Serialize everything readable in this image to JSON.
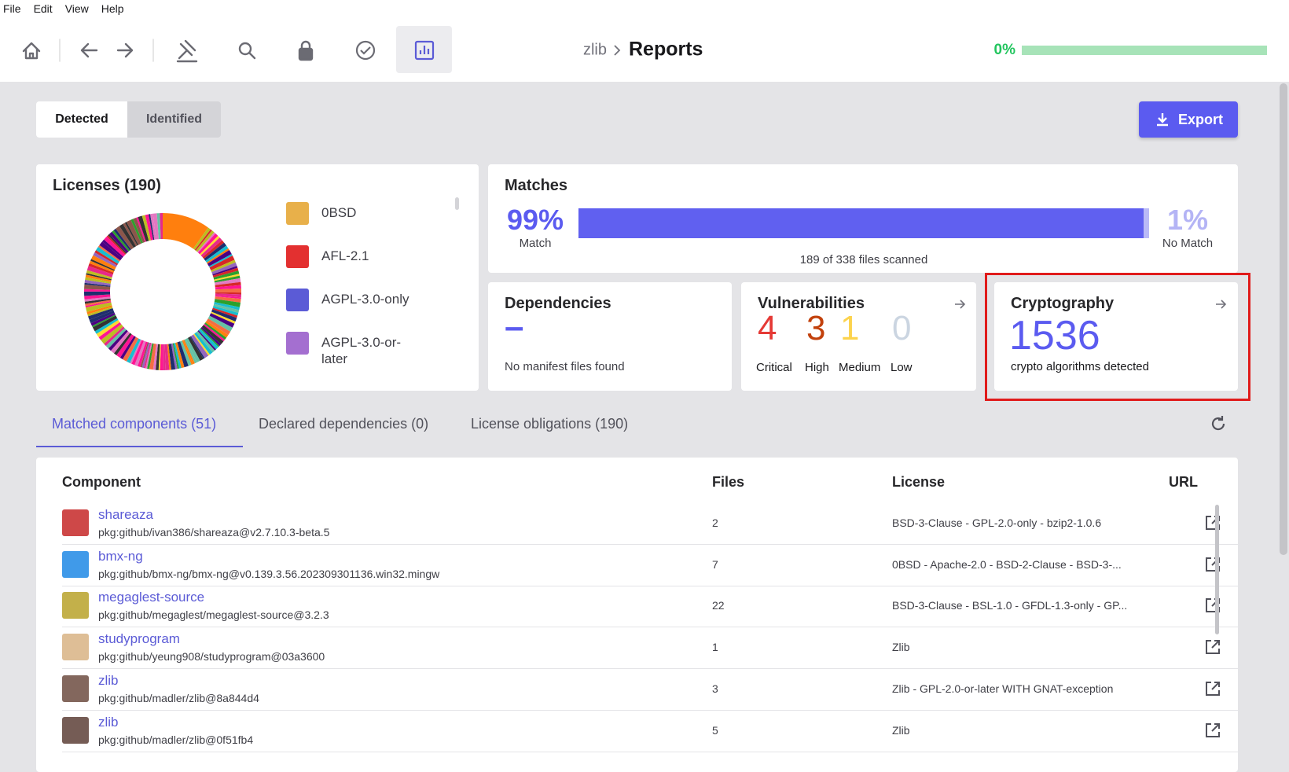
{
  "menu": [
    "File",
    "Edit",
    "View",
    "Help"
  ],
  "breadcrumb": {
    "project": "zlib",
    "page": "Reports"
  },
  "progress": "0%",
  "tabs": [
    "Detected",
    "Identified"
  ],
  "export": "Export",
  "licenses": {
    "title": "Licenses (190)",
    "legend": [
      {
        "name": "0BSD",
        "color": "#e8b04a"
      },
      {
        "name": "AFL-2.1",
        "color": "#e33030"
      },
      {
        "name": "AGPL-3.0-only",
        "color": "#5b5bd6"
      },
      {
        "name": "AGPL-3.0-or-later",
        "color": "#a46fd0"
      }
    ]
  },
  "matches": {
    "title": "Matches",
    "match": "99%",
    "match_label": "Match",
    "no_match": "1%",
    "no_match_label": "No Match",
    "scanned": "189 of 338 files scanned"
  },
  "dependencies": {
    "title": "Dependencies",
    "value": "–",
    "text": "No manifest files found"
  },
  "vulnerabilities": {
    "title": "Vulnerabilities",
    "items": [
      {
        "count": "4",
        "label": "Critical",
        "color": "#e53935"
      },
      {
        "count": "3",
        "label": "High",
        "color": "#c2410c"
      },
      {
        "count": "1",
        "label": "Medium",
        "color": "#fcd34d"
      },
      {
        "count": "0",
        "label": "Low",
        "color": "#cbd5e1"
      }
    ]
  },
  "cryptography": {
    "title": "Cryptography",
    "count": "1536",
    "text": "crypto algorithms detected"
  },
  "component_tabs": [
    "Matched components (51)",
    "Declared dependencies (0)",
    "License obligations (190)"
  ],
  "table": {
    "headers": [
      "Component",
      "Files",
      "License",
      "URL"
    ],
    "rows": [
      [
        "shareaza",
        "pkg:github/ivan386/shareaza@v2.7.10.3-beta.5",
        "2",
        "BSD-3-Clause - GPL-2.0-only - bzip2-1.0.6"
      ],
      [
        "bmx-ng",
        "pkg:github/bmx-ng/bmx-ng@v0.139.3.56.202309301136.win32.mingw",
        "7",
        "0BSD - Apache-2.0 - BSD-2-Clause - BSD-3-..."
      ],
      [
        "megaglest-source",
        "pkg:github/megaglest/megaglest-source@3.2.3",
        "22",
        "BSD-3-Clause - BSL-1.0 - GFDL-1.3-only - GP..."
      ],
      [
        "studyprogram",
        "pkg:github/yeung908/studyprogram@03a3600",
        "1",
        "Zlib"
      ],
      [
        "zlib",
        "pkg:github/madler/zlib@8a844d4",
        "3",
        "Zlib - GPL-2.0-or-later WITH GNAT-exception"
      ],
      [
        "zlib",
        "pkg:github/madler/zlib@0f51fb4",
        "5",
        "Zlib"
      ]
    ]
  }
}
